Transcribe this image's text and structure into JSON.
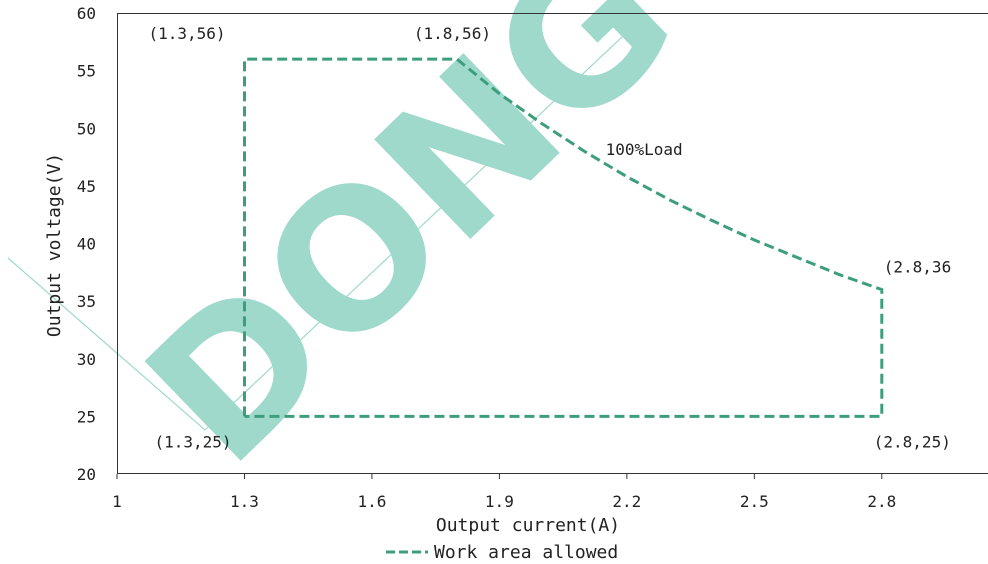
{
  "chart_data": {
    "type": "line",
    "xlabel": "Output current(A)",
    "ylabel": "Output voltage(V)",
    "xlim": [
      1,
      3.05
    ],
    "ylim": [
      20,
      60
    ],
    "x_ticks": [
      "1",
      "1.3",
      "1.6",
      "1.9",
      "2.2",
      "2.5",
      "2.8"
    ],
    "y_ticks": [
      "20",
      "25",
      "30",
      "35",
      "40",
      "45",
      "50",
      "55",
      "60"
    ],
    "grid": false,
    "series": [
      {
        "name": "Work area allowed",
        "style": "dashed",
        "color": "#3d9e7c",
        "points": [
          [
            1.3,
            25
          ],
          [
            1.3,
            56
          ],
          [
            1.8,
            56
          ],
          [
            1.9,
            53
          ],
          [
            2.0,
            50.4
          ],
          [
            2.1,
            48
          ],
          [
            2.2,
            45.8
          ],
          [
            2.3,
            43.8
          ],
          [
            2.4,
            42
          ],
          [
            2.5,
            40.3
          ],
          [
            2.6,
            38.8
          ],
          [
            2.7,
            37.3
          ],
          [
            2.8,
            36
          ],
          [
            2.8,
            25
          ],
          [
            1.3,
            25
          ]
        ]
      }
    ],
    "annotations": [
      {
        "text": "(1.3,56)",
        "x": 1.3,
        "y": 56,
        "position": "upper-left"
      },
      {
        "text": "(1.8,56)",
        "x": 1.8,
        "y": 56,
        "position": "above"
      },
      {
        "text": "(2.8,36",
        "x": 2.8,
        "y": 36,
        "position": "upper-right"
      },
      {
        "text": "(1.3,25)",
        "x": 1.3,
        "y": 25,
        "position": "below"
      },
      {
        "text": "(2.8,25)",
        "x": 2.8,
        "y": 25,
        "position": "below"
      },
      {
        "text": "100%Load",
        "x": 2.15,
        "y": 47.7,
        "position": "center"
      }
    ],
    "legend": {
      "placement": "bottom",
      "label": "Work area allowed"
    }
  },
  "watermark": {
    "text": "DONG",
    "color": "#8fd3c4"
  }
}
